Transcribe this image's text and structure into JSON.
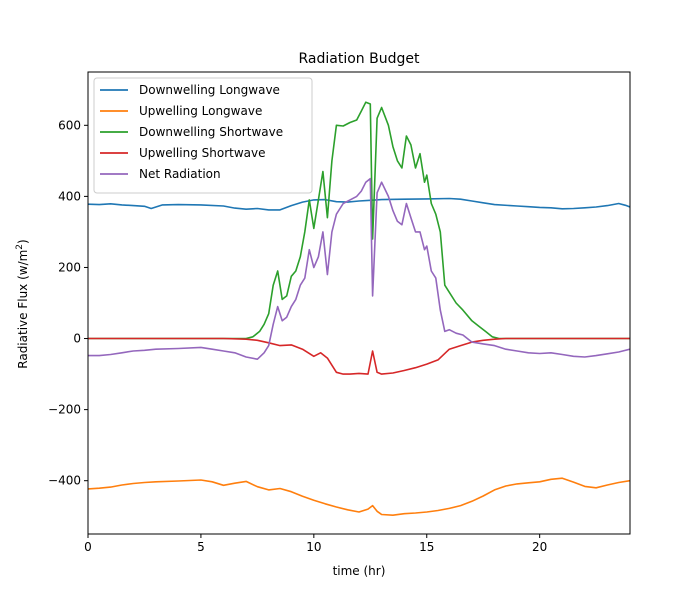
{
  "chart_data": {
    "type": "line",
    "title": "Radiation Budget",
    "xlabel": "time (hr)",
    "ylabel": "Radiative Flux (w/m",
    "ylabel_superscript": "2",
    "ylabel_suffix": ")",
    "xlim": [
      0,
      24
    ],
    "ylim": [
      -550,
      750
    ],
    "xticks": [
      0,
      5,
      10,
      15,
      20
    ],
    "xtick_labels": [
      "0",
      "5",
      "10",
      "15",
      "20"
    ],
    "yticks": [
      -400,
      -200,
      0,
      200,
      400,
      600
    ],
    "ytick_labels": [
      "−400",
      "−200",
      "0",
      "200",
      "400",
      "600"
    ],
    "grid": false,
    "legend": "upper-left",
    "series": [
      {
        "name": "Downwelling Longwave",
        "color": "#1f77b4",
        "points": [
          [
            0,
            378
          ],
          [
            0.5,
            377
          ],
          [
            1,
            379
          ],
          [
            1.5,
            376
          ],
          [
            2,
            374
          ],
          [
            2.5,
            372
          ],
          [
            2.8,
            366
          ],
          [
            3.3,
            376
          ],
          [
            4,
            377
          ],
          [
            5,
            376
          ],
          [
            6,
            373
          ],
          [
            6.5,
            367
          ],
          [
            7,
            364
          ],
          [
            7.5,
            366
          ],
          [
            8,
            362
          ],
          [
            8.5,
            362
          ],
          [
            9,
            374
          ],
          [
            9.5,
            384
          ],
          [
            10,
            390
          ],
          [
            10.5,
            391
          ],
          [
            11,
            385
          ],
          [
            11.5,
            384
          ],
          [
            12,
            387
          ],
          [
            12.5,
            389
          ],
          [
            13,
            391
          ],
          [
            14,
            392
          ],
          [
            15,
            393
          ],
          [
            16,
            394
          ],
          [
            16.5,
            392
          ],
          [
            17,
            387
          ],
          [
            17.5,
            382
          ],
          [
            18,
            377
          ],
          [
            19,
            373
          ],
          [
            19.5,
            371
          ],
          [
            20,
            369
          ],
          [
            20.5,
            368
          ],
          [
            21,
            365
          ],
          [
            21.5,
            366
          ],
          [
            22,
            368
          ],
          [
            22.5,
            370
          ],
          [
            23,
            374
          ],
          [
            23.5,
            380
          ],
          [
            23.8,
            375
          ],
          [
            24,
            370
          ]
        ]
      },
      {
        "name": "Upwelling Longwave",
        "color": "#ff7f0e",
        "points": [
          [
            0,
            -423
          ],
          [
            0.5,
            -421
          ],
          [
            1,
            -418
          ],
          [
            1.5,
            -412
          ],
          [
            2,
            -408
          ],
          [
            2.5,
            -405
          ],
          [
            3,
            -403
          ],
          [
            4,
            -401
          ],
          [
            5,
            -398
          ],
          [
            5.5,
            -403
          ],
          [
            6,
            -413
          ],
          [
            6.5,
            -407
          ],
          [
            7,
            -402
          ],
          [
            7.5,
            -417
          ],
          [
            8,
            -426
          ],
          [
            8.5,
            -422
          ],
          [
            9,
            -431
          ],
          [
            9.5,
            -444
          ],
          [
            10,
            -455
          ],
          [
            10.5,
            -465
          ],
          [
            11,
            -474
          ],
          [
            11.5,
            -482
          ],
          [
            12,
            -488
          ],
          [
            12.4,
            -480
          ],
          [
            12.6,
            -470
          ],
          [
            12.8,
            -486
          ],
          [
            13,
            -495
          ],
          [
            13.5,
            -497
          ],
          [
            14,
            -493
          ],
          [
            14.5,
            -491
          ],
          [
            15,
            -488
          ],
          [
            15.5,
            -484
          ],
          [
            16,
            -478
          ],
          [
            16.5,
            -470
          ],
          [
            17,
            -458
          ],
          [
            17.5,
            -443
          ],
          [
            18,
            -426
          ],
          [
            18.5,
            -415
          ],
          [
            19,
            -409
          ],
          [
            19.5,
            -406
          ],
          [
            20,
            -403
          ],
          [
            20.5,
            -396
          ],
          [
            21,
            -393
          ],
          [
            21.5,
            -404
          ],
          [
            22,
            -416
          ],
          [
            22.5,
            -420
          ],
          [
            23,
            -412
          ],
          [
            23.5,
            -405
          ],
          [
            24,
            -400
          ]
        ]
      },
      {
        "name": "Downwelling Shortwave",
        "color": "#2ca02c",
        "points": [
          [
            0,
            0
          ],
          [
            1,
            0
          ],
          [
            2,
            0
          ],
          [
            3,
            0
          ],
          [
            4,
            0
          ],
          [
            5,
            0
          ],
          [
            6,
            0
          ],
          [
            6.5,
            0
          ],
          [
            7,
            0
          ],
          [
            7.3,
            5
          ],
          [
            7.6,
            20
          ],
          [
            7.8,
            40
          ],
          [
            8,
            70
          ],
          [
            8.2,
            150
          ],
          [
            8.4,
            190
          ],
          [
            8.6,
            110
          ],
          [
            8.8,
            120
          ],
          [
            9,
            175
          ],
          [
            9.2,
            190
          ],
          [
            9.4,
            230
          ],
          [
            9.6,
            300
          ],
          [
            9.8,
            390
          ],
          [
            10,
            310
          ],
          [
            10.2,
            390
          ],
          [
            10.4,
            470
          ],
          [
            10.6,
            340
          ],
          [
            10.8,
            500
          ],
          [
            11,
            600
          ],
          [
            11.3,
            598
          ],
          [
            11.6,
            608
          ],
          [
            11.9,
            615
          ],
          [
            12.1,
            640
          ],
          [
            12.3,
            665
          ],
          [
            12.5,
            660
          ],
          [
            12.6,
            280
          ],
          [
            12.8,
            620
          ],
          [
            13,
            650
          ],
          [
            13.3,
            600
          ],
          [
            13.5,
            540
          ],
          [
            13.7,
            500
          ],
          [
            13.9,
            480
          ],
          [
            14.1,
            570
          ],
          [
            14.3,
            545
          ],
          [
            14.5,
            480
          ],
          [
            14.7,
            520
          ],
          [
            14.9,
            440
          ],
          [
            15,
            460
          ],
          [
            15.2,
            380
          ],
          [
            15.4,
            350
          ],
          [
            15.6,
            300
          ],
          [
            15.8,
            150
          ],
          [
            16,
            130
          ],
          [
            16.3,
            100
          ],
          [
            16.6,
            80
          ],
          [
            17,
            50
          ],
          [
            17.3,
            35
          ],
          [
            17.6,
            20
          ],
          [
            17.9,
            5
          ],
          [
            18.2,
            0
          ],
          [
            19,
            0
          ],
          [
            20,
            0
          ],
          [
            21,
            0
          ],
          [
            22,
            0
          ],
          [
            23,
            0
          ],
          [
            24,
            0
          ]
        ]
      },
      {
        "name": "Upwelling Shortwave",
        "color": "#d62728",
        "points": [
          [
            0,
            0
          ],
          [
            2,
            0
          ],
          [
            4,
            0
          ],
          [
            6,
            0
          ],
          [
            7,
            -2
          ],
          [
            7.5,
            -5
          ],
          [
            8,
            -12
          ],
          [
            8.5,
            -20
          ],
          [
            9,
            -18
          ],
          [
            9.5,
            -30
          ],
          [
            10,
            -50
          ],
          [
            10.3,
            -40
          ],
          [
            10.6,
            -55
          ],
          [
            11,
            -95
          ],
          [
            11.3,
            -100
          ],
          [
            11.6,
            -100
          ],
          [
            12,
            -98
          ],
          [
            12.4,
            -100
          ],
          [
            12.6,
            -35
          ],
          [
            12.8,
            -95
          ],
          [
            13,
            -100
          ],
          [
            13.5,
            -97
          ],
          [
            14,
            -90
          ],
          [
            14.5,
            -82
          ],
          [
            15,
            -72
          ],
          [
            15.5,
            -60
          ],
          [
            16,
            -30
          ],
          [
            16.5,
            -20
          ],
          [
            17,
            -10
          ],
          [
            17.5,
            -5
          ],
          [
            18,
            -2
          ],
          [
            18.5,
            0
          ],
          [
            20,
            0
          ],
          [
            22,
            0
          ],
          [
            24,
            0
          ]
        ]
      },
      {
        "name": "Net Radiation",
        "color": "#9467bd",
        "points": [
          [
            0,
            -48
          ],
          [
            0.5,
            -48
          ],
          [
            1,
            -45
          ],
          [
            1.5,
            -40
          ],
          [
            2,
            -35
          ],
          [
            2.5,
            -33
          ],
          [
            3,
            -30
          ],
          [
            4,
            -28
          ],
          [
            5,
            -25
          ],
          [
            5.5,
            -30
          ],
          [
            6,
            -35
          ],
          [
            6.5,
            -40
          ],
          [
            7,
            -52
          ],
          [
            7.5,
            -58
          ],
          [
            7.8,
            -40
          ],
          [
            8,
            -20
          ],
          [
            8.2,
            40
          ],
          [
            8.4,
            90
          ],
          [
            8.6,
            50
          ],
          [
            8.8,
            60
          ],
          [
            9,
            90
          ],
          [
            9.2,
            110
          ],
          [
            9.4,
            150
          ],
          [
            9.6,
            170
          ],
          [
            9.8,
            250
          ],
          [
            10,
            200
          ],
          [
            10.2,
            230
          ],
          [
            10.4,
            300
          ],
          [
            10.6,
            180
          ],
          [
            10.8,
            300
          ],
          [
            11,
            350
          ],
          [
            11.3,
            380
          ],
          [
            11.6,
            390
          ],
          [
            11.9,
            400
          ],
          [
            12.1,
            415
          ],
          [
            12.3,
            440
          ],
          [
            12.5,
            450
          ],
          [
            12.6,
            120
          ],
          [
            12.8,
            410
          ],
          [
            13,
            440
          ],
          [
            13.3,
            400
          ],
          [
            13.5,
            360
          ],
          [
            13.7,
            330
          ],
          [
            13.9,
            320
          ],
          [
            14.1,
            380
          ],
          [
            14.3,
            340
          ],
          [
            14.5,
            300
          ],
          [
            14.7,
            300
          ],
          [
            14.9,
            250
          ],
          [
            15,
            260
          ],
          [
            15.2,
            190
          ],
          [
            15.4,
            170
          ],
          [
            15.6,
            80
          ],
          [
            15.8,
            20
          ],
          [
            16,
            25
          ],
          [
            16.3,
            15
          ],
          [
            16.6,
            10
          ],
          [
            17,
            -10
          ],
          [
            17.5,
            -15
          ],
          [
            18,
            -20
          ],
          [
            18.5,
            -30
          ],
          [
            19,
            -35
          ],
          [
            19.5,
            -40
          ],
          [
            20,
            -42
          ],
          [
            20.5,
            -40
          ],
          [
            21,
            -45
          ],
          [
            21.5,
            -50
          ],
          [
            22,
            -52
          ],
          [
            22.5,
            -48
          ],
          [
            23,
            -43
          ],
          [
            23.5,
            -38
          ],
          [
            24,
            -30
          ]
        ]
      }
    ]
  }
}
